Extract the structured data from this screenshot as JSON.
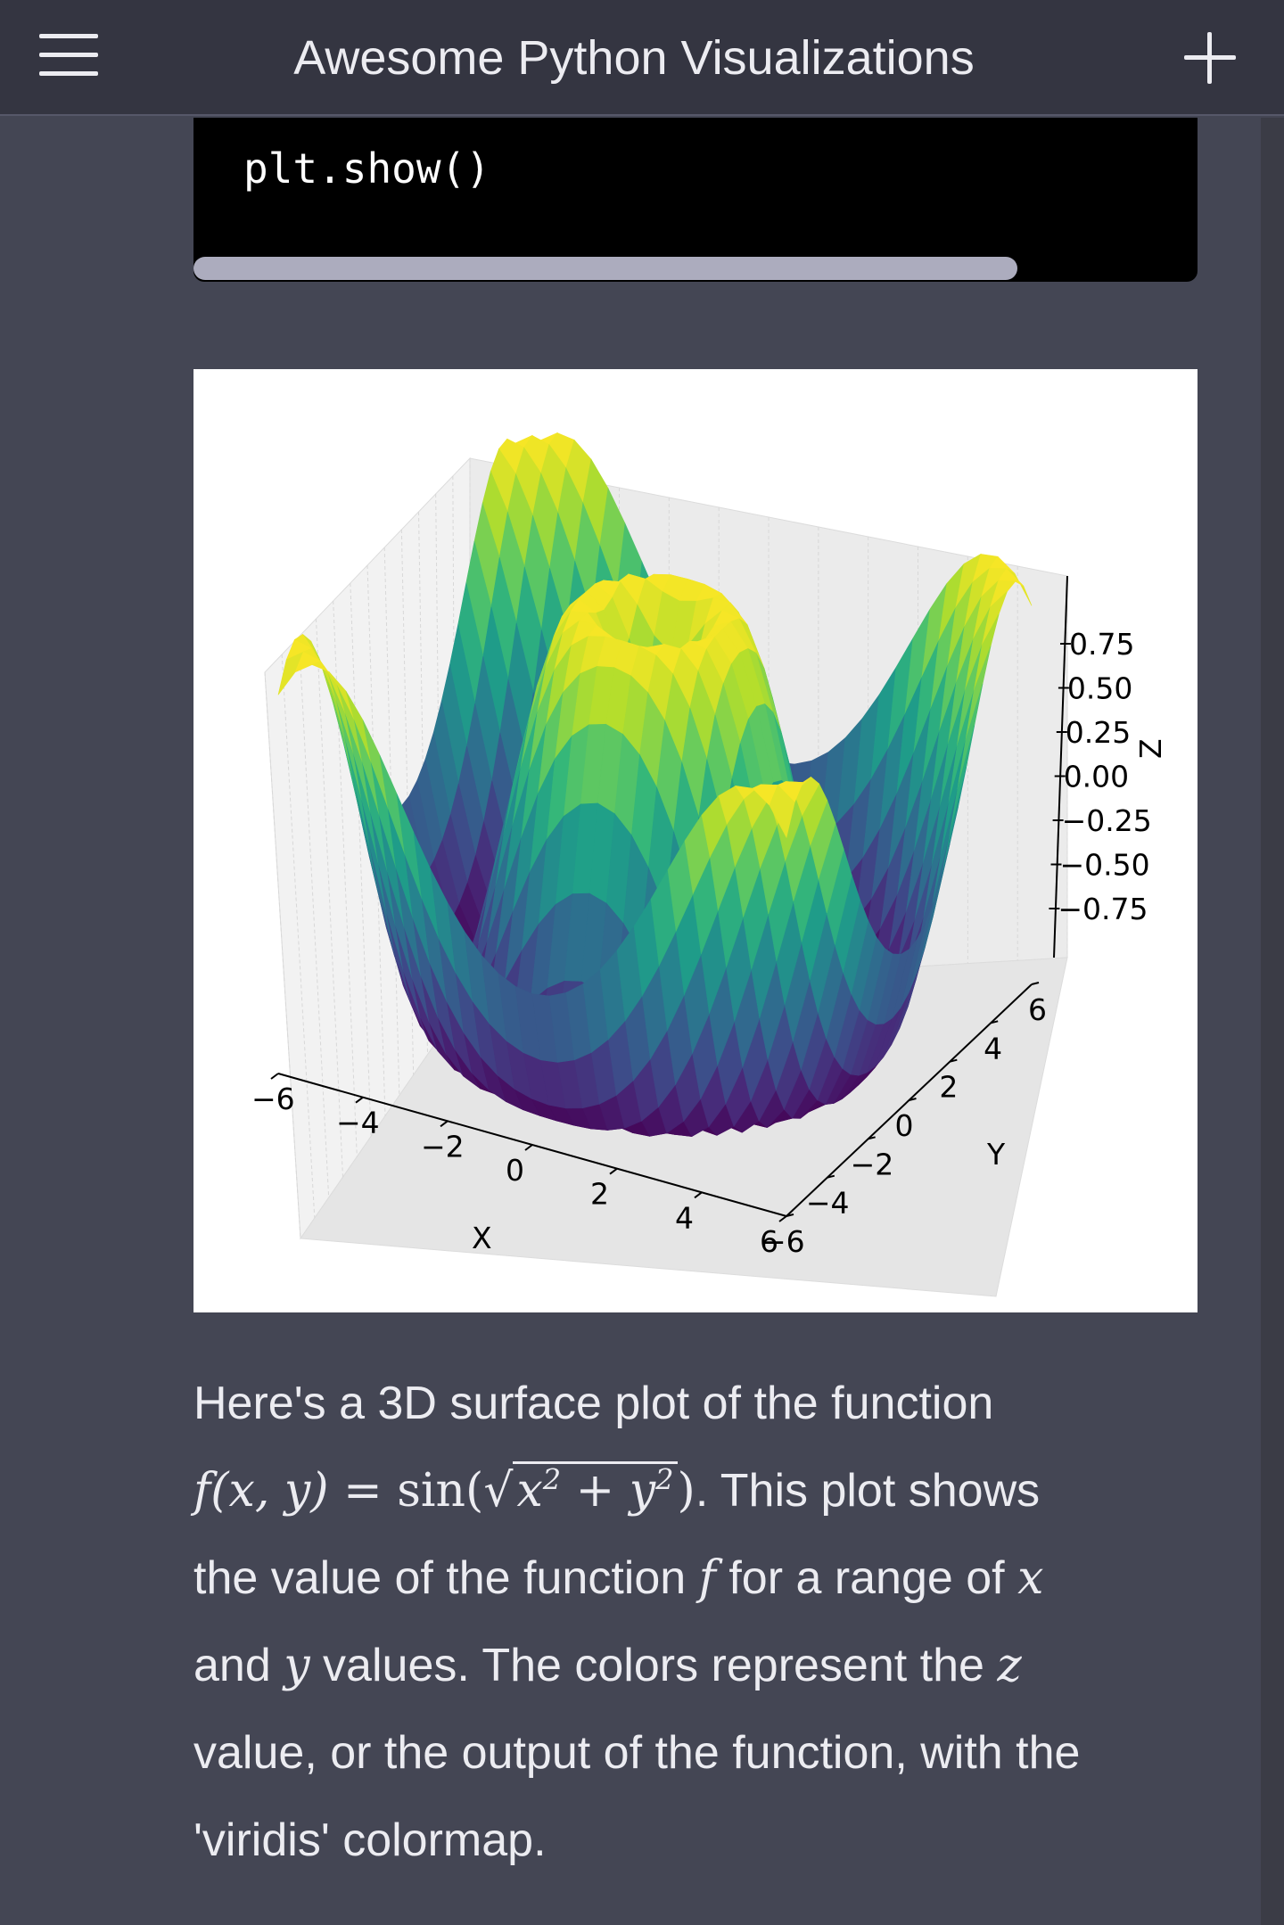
{
  "header": {
    "title": "Awesome Python Visualizations",
    "menu_icon": "hamburger-menu-icon",
    "new_chat_icon": "plus-icon"
  },
  "code": {
    "line": "plt.show()"
  },
  "chart_data": {
    "type": "surface",
    "function": "sin(sqrt(x^2 + y^2))",
    "colormap": "viridis",
    "xlabel": "X",
    "ylabel": "Y",
    "zlabel": "Z",
    "x_ticks": [
      "−6",
      "−4",
      "−2",
      "0",
      "2",
      "4",
      "6"
    ],
    "y_ticks": [
      "−6",
      "−4",
      "−2",
      "0",
      "2",
      "4",
      "6"
    ],
    "z_ticks": [
      "−0.75",
      "−0.50",
      "−0.25",
      "0.00",
      "0.25",
      "0.50",
      "0.75"
    ],
    "xlim": [
      -6,
      6
    ],
    "ylim": [
      -6,
      6
    ],
    "zlim": [
      -1,
      1
    ],
    "grid": true
  },
  "message": {
    "line1": "Here's a 3D surface plot of the function",
    "f_of": "f",
    "formula_args": "(x, y) = ",
    "sin": "sin(",
    "sqrt_body": "x",
    "plus_y": " + y",
    "close": ")",
    "after_formula": ". This plot shows",
    "line3_a": "the value of the function ",
    "line3_f": "f",
    "line3_b": " for a range of ",
    "line3_x": "x",
    "line4_a": "and ",
    "line4_y": "y",
    "line4_b": " values. The colors represent the ",
    "line4_z": "z",
    "line5": "value, or the output of the function, with the",
    "line6": "'viridis' colormap."
  }
}
